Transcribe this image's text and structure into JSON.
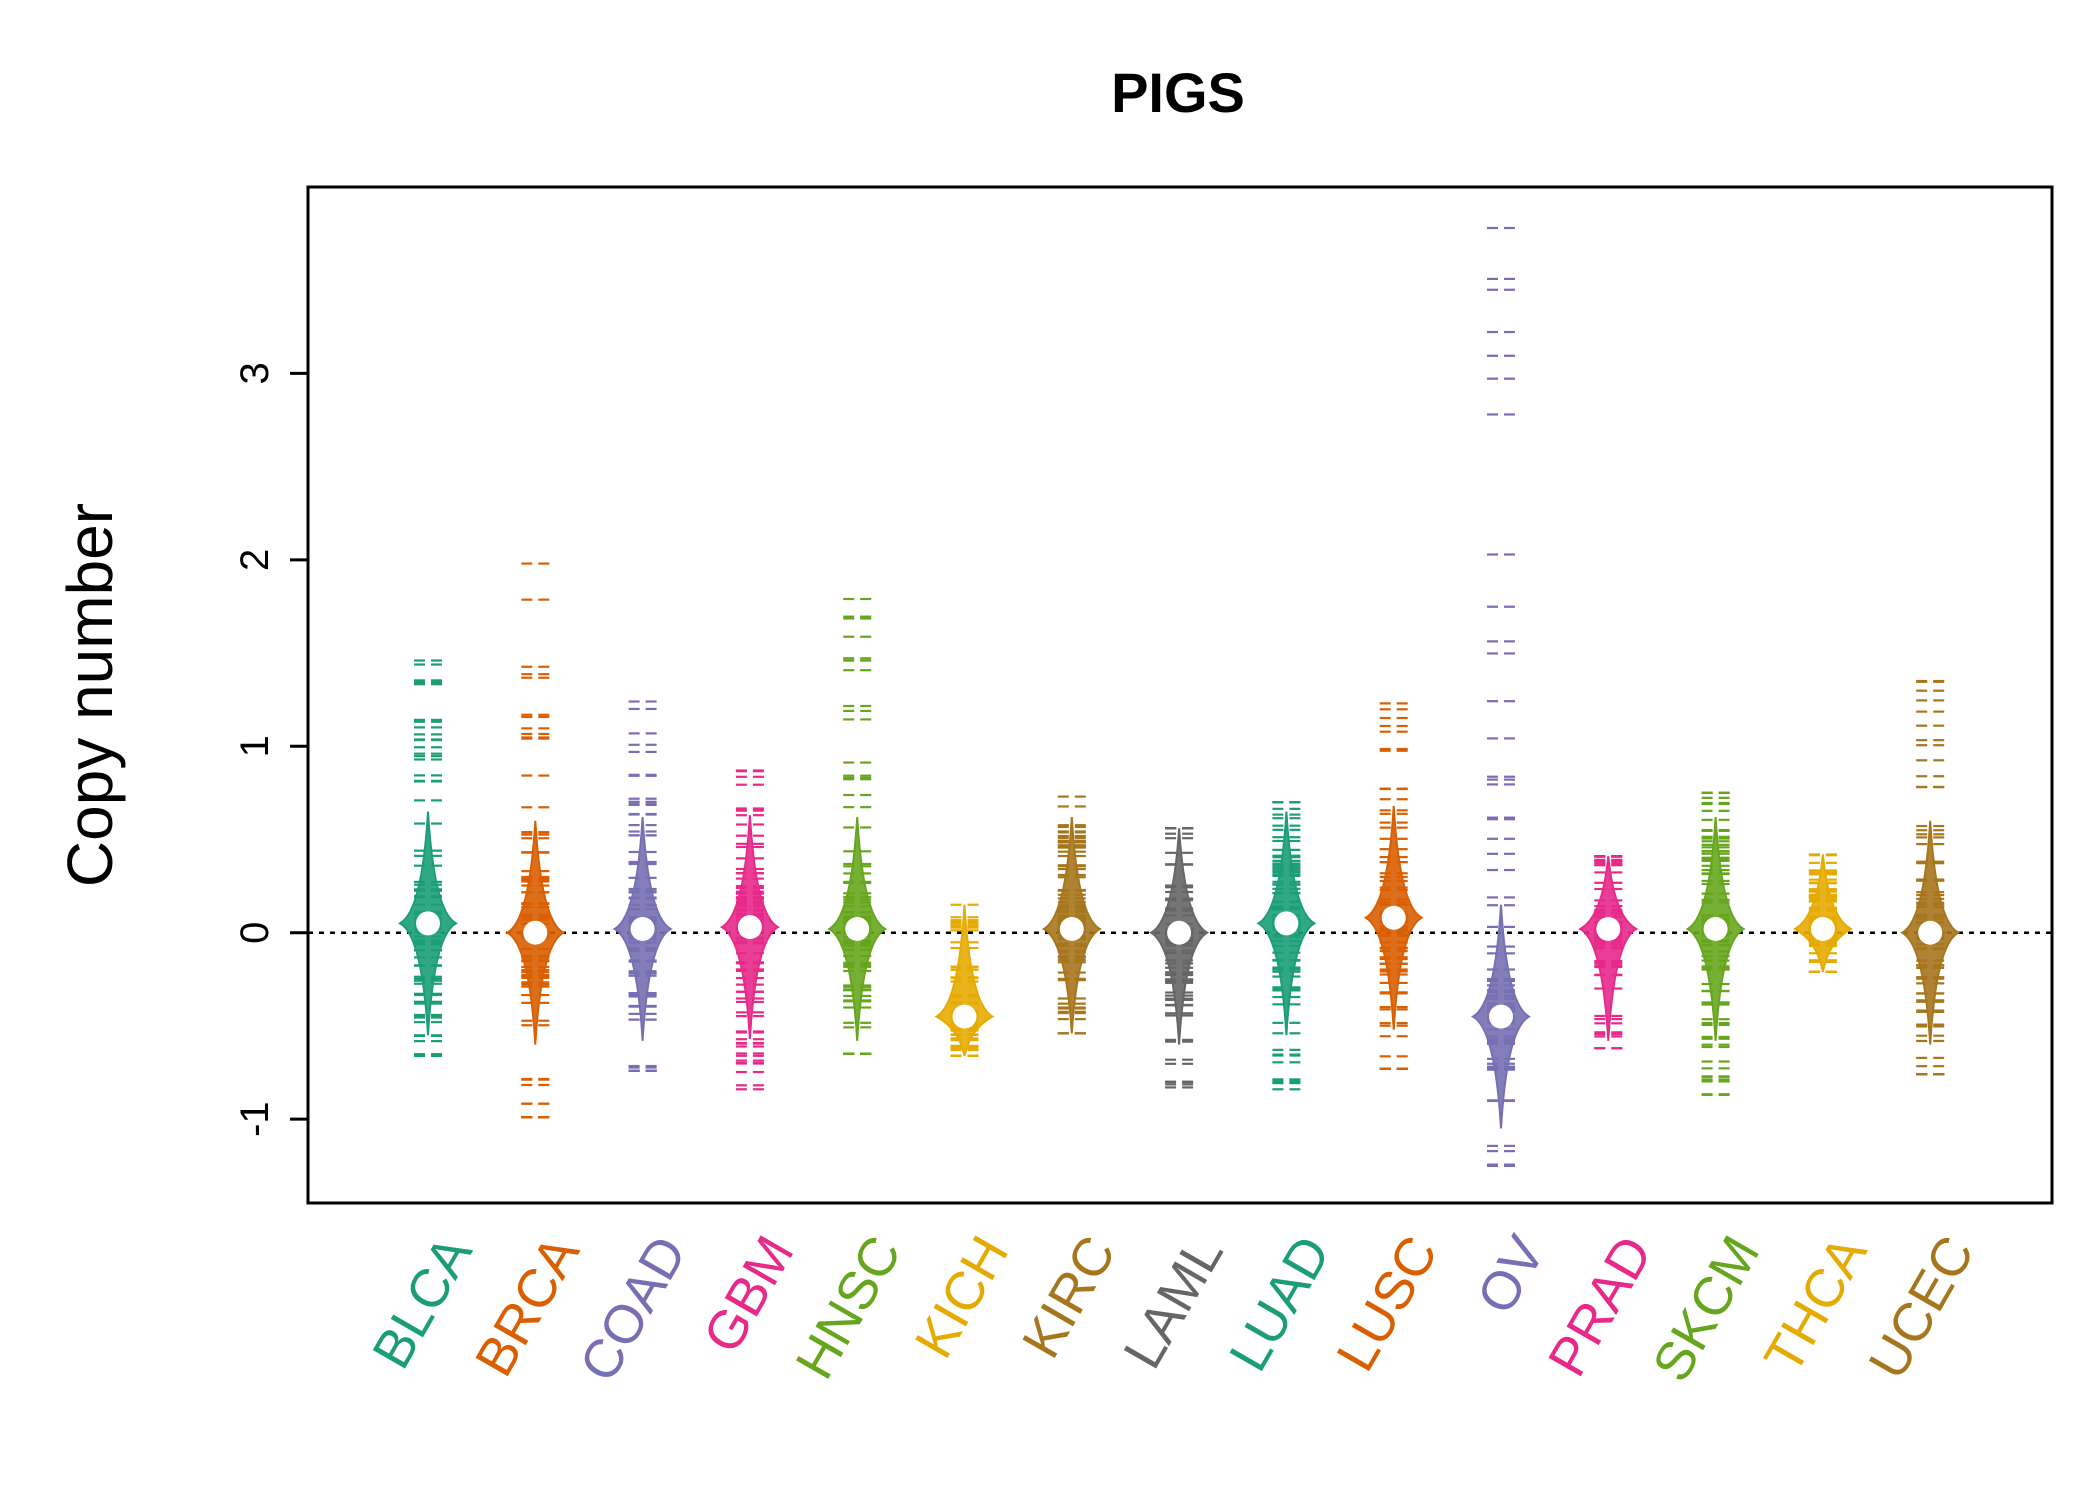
{
  "chart_data": {
    "type": "beanplot",
    "title": "PIGS",
    "ylabel": "Copy number",
    "xlabel": "",
    "ylim": [
      -1.45,
      4.0
    ],
    "yticks": [
      -1,
      0,
      1,
      2,
      3
    ],
    "ytick_labels": [
      "-1",
      "0",
      "1",
      "2",
      "3"
    ],
    "reference_line": 0,
    "grid": false,
    "categories": [
      "BLCA",
      "BRCA",
      "COAD",
      "GBM",
      "HNSC",
      "KICH",
      "KIRC",
      "LAML",
      "LUAD",
      "LUSC",
      "OV",
      "PRAD",
      "SKCM",
      "THCA",
      "UCEC"
    ],
    "colors": [
      "#1B9E77",
      "#D95F02",
      "#7570B3",
      "#E7298A",
      "#66A61E",
      "#E6AB02",
      "#A6761D",
      "#666666",
      "#1B9E77",
      "#D95F02",
      "#7570B3",
      "#E7298A",
      "#66A61E",
      "#E6AB02",
      "#A6761D"
    ],
    "series": [
      {
        "center": 0.05,
        "min": -0.66,
        "max": 1.46
      },
      {
        "center": 0.0,
        "min": -0.99,
        "max": 1.98
      },
      {
        "center": 0.02,
        "min": -0.74,
        "max": 1.24
      },
      {
        "center": 0.03,
        "min": -0.84,
        "max": 0.87
      },
      {
        "center": 0.02,
        "min": -0.65,
        "max": 1.79
      },
      {
        "center": -0.45,
        "min": -0.66,
        "max": 0.15
      },
      {
        "center": 0.02,
        "min": -0.54,
        "max": 0.73
      },
      {
        "center": 0.0,
        "min": -0.83,
        "max": 0.56
      },
      {
        "center": 0.05,
        "min": -0.84,
        "max": 0.7
      },
      {
        "center": 0.08,
        "min": -0.73,
        "max": 1.23
      },
      {
        "center": -0.45,
        "min": -1.25,
        "max": 3.78
      },
      {
        "center": 0.02,
        "min": -0.62,
        "max": 0.41
      },
      {
        "center": 0.02,
        "min": -0.87,
        "max": 0.75
      },
      {
        "center": 0.02,
        "min": -0.21,
        "max": 0.42
      },
      {
        "center": 0.0,
        "min": -0.76,
        "max": 1.35
      }
    ]
  }
}
